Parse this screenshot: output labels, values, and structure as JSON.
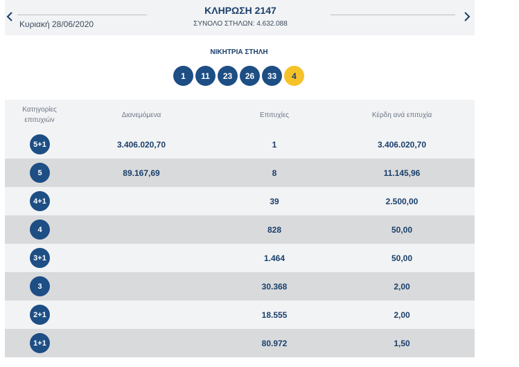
{
  "header": {
    "prev_icon": "chevron-left-icon",
    "next_icon": "chevron-right-icon",
    "date": "Κυριακή 28/06/2020",
    "draw_title": "ΚΛΗΡΩΣΗ 2147",
    "total_columns": "ΣΥΝΟΛΟ ΣΤΗΛΩΝ: 4.632.088"
  },
  "winning": {
    "label": "ΝΙΚΗΤΡΙΑ ΣΤΗΛΗ",
    "numbers": [
      "1",
      "11",
      "23",
      "26",
      "33"
    ],
    "joker": "4"
  },
  "table": {
    "headers": {
      "category": "Κατηγορίες επιτυχιών",
      "distributed": "Διανεμόμενα",
      "winners": "Επιτυχίες",
      "prize": "Κέρδη ανά επιτυχία"
    },
    "rows": [
      {
        "category": "5+1",
        "distributed": "3.406.020,70",
        "winners": "1",
        "prize": "3.406.020,70"
      },
      {
        "category": "5",
        "distributed": "89.167,69",
        "winners": "8",
        "prize": "11.145,96"
      },
      {
        "category": "4+1",
        "distributed": "",
        "winners": "39",
        "prize": "2.500,00"
      },
      {
        "category": "4",
        "distributed": "",
        "winners": "828",
        "prize": "50,00"
      },
      {
        "category": "3+1",
        "distributed": "",
        "winners": "1.464",
        "prize": "50,00"
      },
      {
        "category": "3",
        "distributed": "",
        "winners": "30.368",
        "prize": "2,00"
      },
      {
        "category": "2+1",
        "distributed": "",
        "winners": "18.555",
        "prize": "2,00"
      },
      {
        "category": "1+1",
        "distributed": "",
        "winners": "80.972",
        "prize": "1,50"
      }
    ]
  },
  "colors": {
    "navy": "#1d4e84",
    "joker_yellow": "#f6c22a",
    "row_light": "#f2f3f5",
    "row_dark": "#d9dadc"
  }
}
